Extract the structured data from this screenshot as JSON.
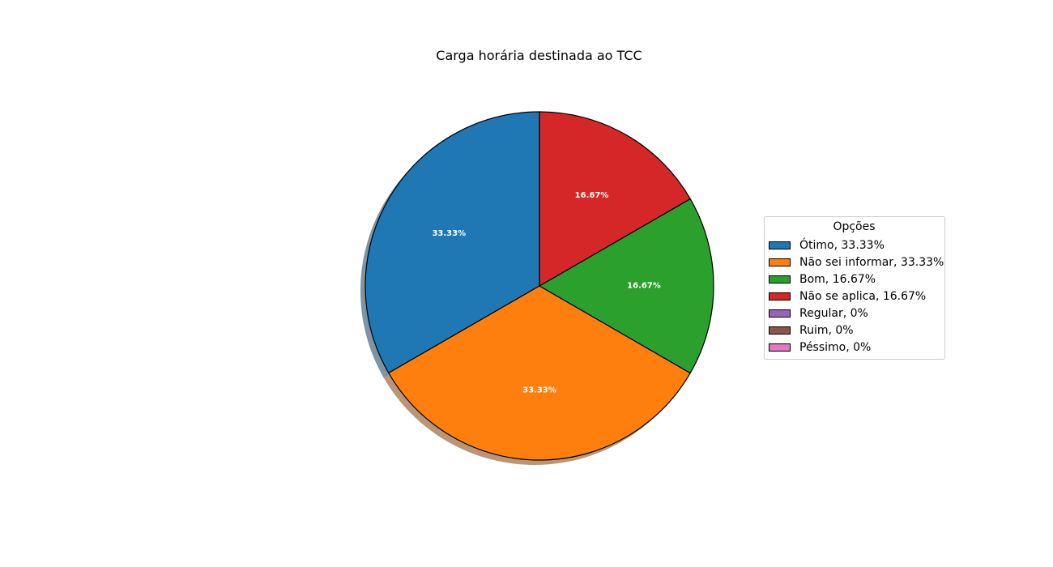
{
  "chart_data": {
    "type": "pie",
    "title": "Carga horária destinada ao TCC",
    "slices": [
      {
        "label": "Ótimo",
        "value": 33.33,
        "pct_label": "33.33%",
        "legend": "Ótimo, 33.33%",
        "color": "#1f77b4"
      },
      {
        "label": "Não sei informar",
        "value": 33.33,
        "pct_label": "33.33%",
        "legend": "Não sei informar, 33.33%",
        "color": "#ff7f0e"
      },
      {
        "label": "Bom",
        "value": 16.67,
        "pct_label": "16.67%",
        "legend": "Bom, 16.67%",
        "color": "#2ca02c"
      },
      {
        "label": "Não se aplica",
        "value": 16.67,
        "pct_label": "16.67%",
        "legend": "Não se aplica, 16.67%",
        "color": "#d62728"
      },
      {
        "label": "Regular",
        "value": 0,
        "pct_label": "",
        "legend": "Regular, 0%",
        "color": "#9467bd"
      },
      {
        "label": "Ruim",
        "value": 0,
        "pct_label": "",
        "legend": "Ruim, 0%",
        "color": "#8c564b"
      },
      {
        "label": "Péssimo",
        "value": 0,
        "pct_label": "",
        "legend": "Péssimo, 0%",
        "color": "#e377c2"
      }
    ],
    "start_angle_deg": 90,
    "direction": "counterclockwise",
    "shadow": true,
    "legend_title": "Opções",
    "legend_placement": "right"
  }
}
